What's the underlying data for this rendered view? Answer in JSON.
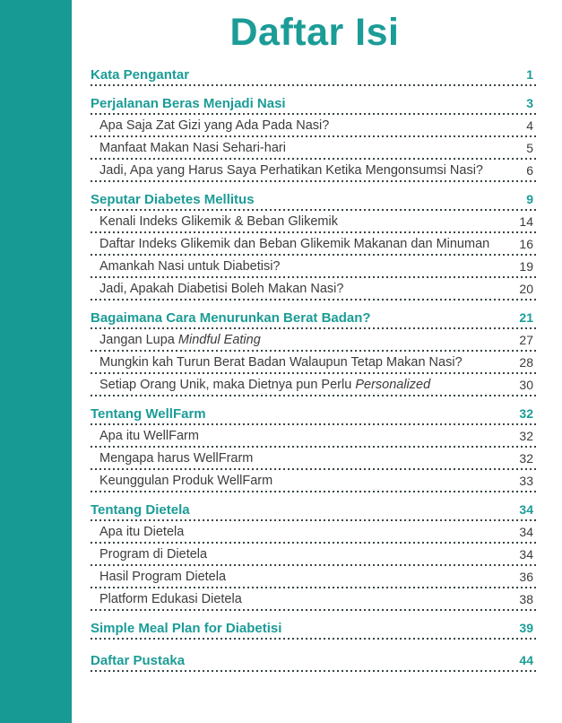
{
  "page": {
    "title": "Daftar Isi",
    "accent_color": "#179A94",
    "heading_color": "#1B9C97",
    "text_color": "#3C3C3C",
    "background": "#FFFFFF"
  },
  "toc": {
    "entries": [
      {
        "label": "Kata Pengantar",
        "page": "1",
        "level": "heading"
      },
      {
        "label": "Perjalanan Beras Menjadi Nasi",
        "page": "3",
        "level": "heading"
      },
      {
        "label": "Apa Saja Zat Gizi yang Ada Pada Nasi?",
        "page": "4",
        "level": "sub"
      },
      {
        "label": "Manfaat Makan Nasi Sehari-hari",
        "page": "5",
        "level": "sub"
      },
      {
        "label": "Jadi, Apa yang Harus Saya Perhatikan Ketika Mengonsumsi Nasi?",
        "page": "6",
        "level": "sub"
      },
      {
        "label": "Seputar Diabetes Mellitus",
        "page": "9",
        "level": "heading"
      },
      {
        "label": "Kenali Indeks Glikemik & Beban Glikemik",
        "page": "14",
        "level": "sub"
      },
      {
        "label": "Daftar Indeks Glikemik dan Beban Glikemik Makanan dan Minuman",
        "page": "16",
        "level": "sub"
      },
      {
        "label": "Amankah Nasi untuk Diabetisi?",
        "page": "19",
        "level": "sub"
      },
      {
        "label": "Jadi, Apakah Diabetisi Boleh Makan Nasi?",
        "page": "20",
        "level": "sub"
      },
      {
        "label": "Bagaimana Cara Menurunkan Berat Badan?",
        "page": "21",
        "level": "heading"
      },
      {
        "label": "Jangan Lupa Mindful Eating",
        "italic_part": "Mindful Eating",
        "page": "27",
        "level": "sub"
      },
      {
        "label": "Mungkin kah Turun Berat Badan Walaupun Tetap Makan Nasi?",
        "page": "28",
        "level": "sub"
      },
      {
        "label": "Setiap Orang Unik, maka Dietnya pun Perlu Personalized",
        "italic_part": "Personalized",
        "page": "30",
        "level": "sub"
      },
      {
        "label": "Tentang WellFarm",
        "page": "32",
        "level": "heading"
      },
      {
        "label": "Apa itu WellFarm",
        "page": "32",
        "level": "sub"
      },
      {
        "label": "Mengapa harus WellFrarm",
        "page": "32",
        "level": "sub"
      },
      {
        "label": "Keunggulan Produk WellFarm",
        "page": "33",
        "level": "sub"
      },
      {
        "label": "Tentang Dietela",
        "page": "34",
        "level": "heading"
      },
      {
        "label": "Apa itu Dietela",
        "page": "34",
        "level": "sub"
      },
      {
        "label": "Program di Dietela",
        "page": "34",
        "level": "sub"
      },
      {
        "label": "Hasil Program Dietela",
        "page": "36",
        "level": "sub"
      },
      {
        "label": "Platform Edukasi Dietela",
        "page": "38",
        "level": "sub"
      },
      {
        "label": "Simple Meal Plan for Diabetisi",
        "page": "39",
        "level": "heading"
      },
      {
        "label": "Daftar Pustaka",
        "page": "44",
        "level": "heading",
        "extra_gap": true
      }
    ]
  }
}
